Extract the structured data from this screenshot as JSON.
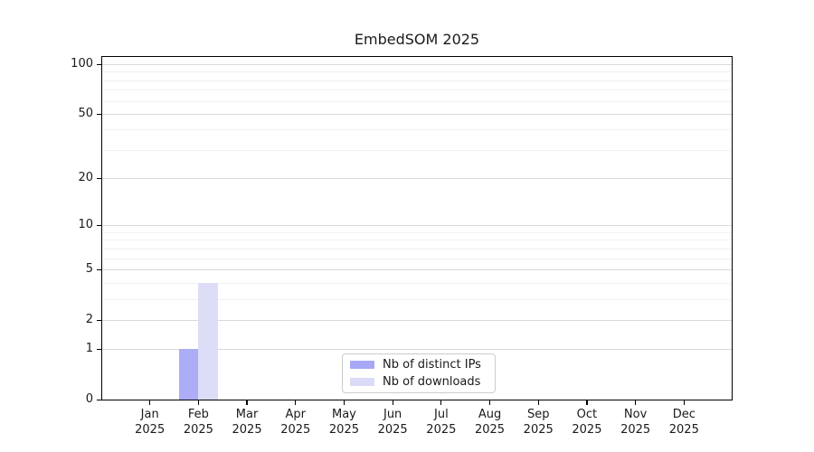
{
  "title": "EmbedSOM 2025",
  "chart_data": {
    "type": "bar",
    "title": "EmbedSOM 2025",
    "categories": [
      "Jan",
      "Feb",
      "Mar",
      "Apr",
      "May",
      "Jun",
      "Jul",
      "Aug",
      "Sep",
      "Oct",
      "Nov",
      "Dec"
    ],
    "category_year": "2025",
    "series": [
      {
        "name": "Nb of distinct IPs",
        "color": "#a8a8f7",
        "values": [
          0,
          1,
          0,
          0,
          0,
          0,
          0,
          0,
          0,
          0,
          0,
          0
        ]
      },
      {
        "name": "Nb of downloads",
        "color": "#dbdbf7",
        "values": [
          0,
          4,
          0,
          0,
          0,
          0,
          0,
          0,
          0,
          0,
          0,
          0
        ]
      }
    ],
    "yscale": "log1p",
    "yticks": [
      0,
      1,
      2,
      5,
      10,
      20,
      50,
      100
    ],
    "yticks_minor": [
      3,
      4,
      6,
      7,
      8,
      9,
      30,
      40,
      60,
      70,
      80,
      90
    ],
    "ylim": [
      0,
      100
    ],
    "grid": "horizontal-only",
    "legend_position": "bottom-center"
  },
  "colors": {
    "major_grid": "#d9d9d9",
    "minor_grid": "#f1f1f1",
    "axis": "#000000",
    "text": "#1a1a1a",
    "legend_border": "#cccccc",
    "background": "#ffffff"
  }
}
